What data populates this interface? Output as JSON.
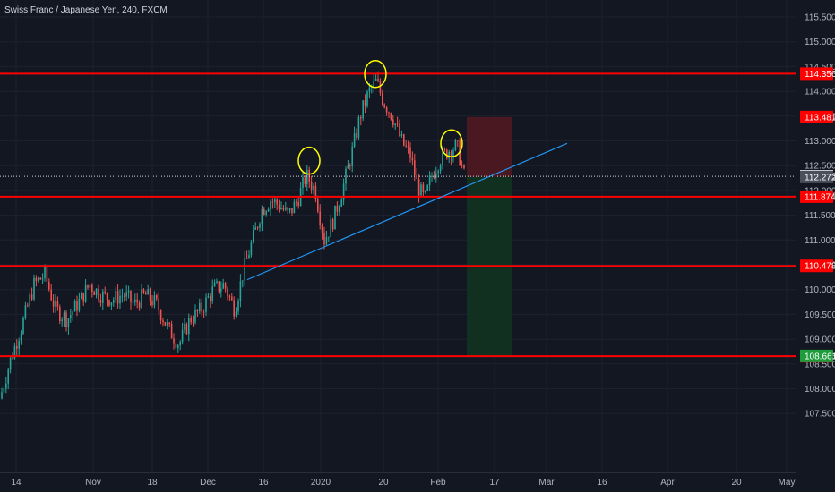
{
  "header": {
    "title": "Swiss Franc / Japanese Yen, 240, FXCM"
  },
  "colors": {
    "background": "#131722",
    "grid": "#1e2230",
    "up_candle": "#26a69a",
    "down_candle": "#ef5350",
    "resistance_line": "#ff0000",
    "trendline": "#2196f3",
    "circle": "#ffff00",
    "stop_zone": "#4a1820",
    "target_zone": "#12301f",
    "current_price_box": "#ffffff",
    "entry_box": "#4a4f5c",
    "target_box": "#1f9d3d",
    "level_box": "#ff0000"
  },
  "chart_data": {
    "type": "candlestick",
    "title": "Swiss Franc / Japanese Yen, 240, FXCM",
    "ylim": [
      107.2,
      115.8
    ],
    "y_ticks": [
      "115.500",
      "115.000",
      "114.500",
      "114.000",
      "113.500",
      "113.000",
      "112.500",
      "112.000",
      "111.500",
      "111.000",
      "110.500",
      "110.000",
      "109.500",
      "109.000",
      "108.500",
      "108.000",
      "107.500"
    ],
    "x_ticks": [
      "14",
      "Nov",
      "18",
      "Dec",
      "16",
      "2020",
      "20",
      "Feb",
      "17",
      "Mar",
      "16",
      "Apr",
      "20",
      "May"
    ],
    "horizontal_levels": [
      114.356,
      111.874,
      110.478,
      108.656
    ],
    "level_labels": [
      "114.356",
      "111.874",
      "110.478",
      "108.656"
    ],
    "current_price": {
      "value": 112.285,
      "label": "112.285"
    },
    "entry": {
      "value": 112.272,
      "label": "112.272"
    },
    "stop": {
      "value": 113.481,
      "label": "113.481"
    },
    "target": {
      "value": 108.661,
      "label": "108.661"
    },
    "trendline": {
      "from": {
        "time": "Dec 10",
        "price": 110.2
      },
      "to": {
        "time": "Feb 28",
        "price": 112.95
      }
    },
    "highlight_circles": [
      {
        "time": "Dec 28",
        "price": 112.6
      },
      {
        "time": "Jan 19",
        "price": 114.35
      },
      {
        "time": "Feb 6",
        "price": 112.95
      }
    ],
    "path_points": [
      [
        0,
        107.8
      ],
      [
        12,
        108.6
      ],
      [
        25,
        109.3
      ],
      [
        38,
        110.1
      ],
      [
        50,
        110.3
      ],
      [
        62,
        109.6
      ],
      [
        75,
        109.4
      ],
      [
        90,
        109.8
      ],
      [
        100,
        110.1
      ],
      [
        112,
        109.9
      ],
      [
        125,
        109.8
      ],
      [
        138,
        109.9
      ],
      [
        150,
        109.7
      ],
      [
        162,
        109.9
      ],
      [
        175,
        109.7
      ],
      [
        188,
        109.2
      ],
      [
        200,
        108.9
      ],
      [
        212,
        109.4
      ],
      [
        225,
        109.6
      ],
      [
        238,
        110.0
      ],
      [
        250,
        110.1
      ],
      [
        262,
        109.6
      ],
      [
        272,
        110.4
      ],
      [
        282,
        111.0
      ],
      [
        292,
        111.6
      ],
      [
        302,
        111.8
      ],
      [
        312,
        111.7
      ],
      [
        322,
        111.5
      ],
      [
        332,
        111.8
      ],
      [
        342,
        112.3
      ],
      [
        352,
        112.0
      ],
      [
        362,
        111.0
      ],
      [
        372,
        111.4
      ],
      [
        382,
        112.0
      ],
      [
        392,
        112.7
      ],
      [
        402,
        113.5
      ],
      [
        412,
        114.0
      ],
      [
        420,
        114.2
      ],
      [
        428,
        113.8
      ],
      [
        438,
        113.5
      ],
      [
        448,
        113.0
      ],
      [
        458,
        112.7
      ],
      [
        466,
        112.1
      ],
      [
        474,
        111.8
      ],
      [
        482,
        112.3
      ],
      [
        490,
        112.6
      ],
      [
        500,
        112.8
      ],
      [
        510,
        112.9
      ],
      [
        518,
        112.3
      ]
    ]
  }
}
